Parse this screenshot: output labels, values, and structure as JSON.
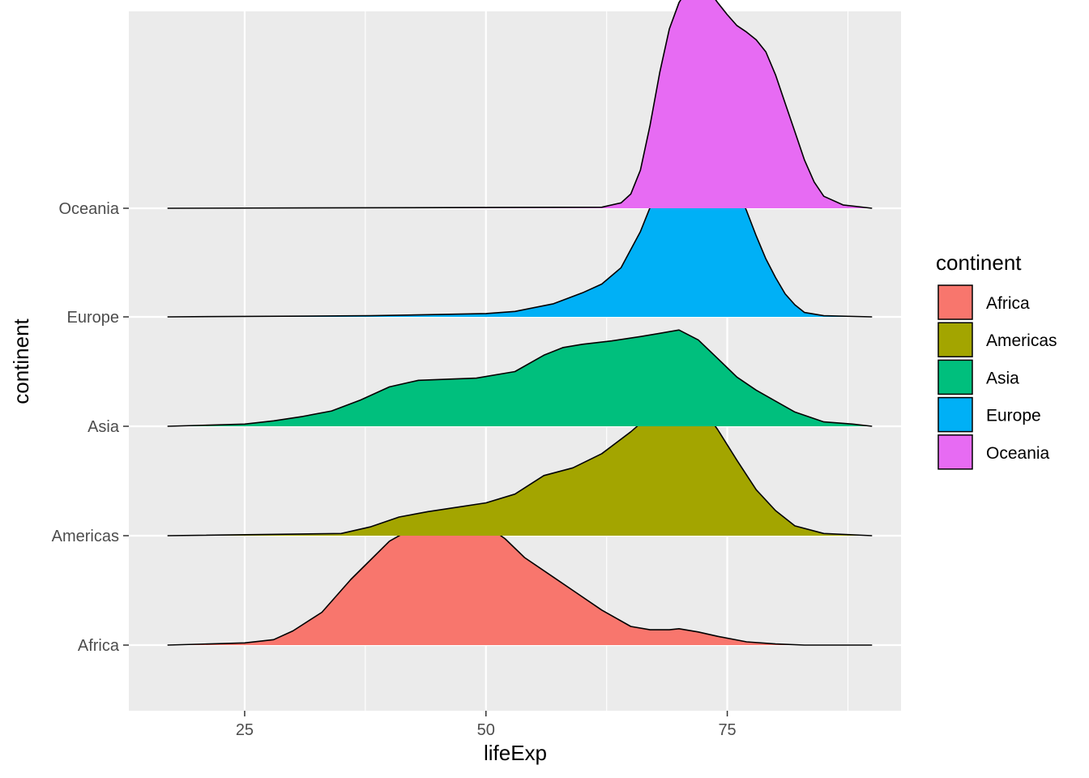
{
  "chart_data": {
    "type": "ridgeline",
    "xlabel": "lifeExp",
    "ylabel": "continent",
    "xlim": [
      13,
      93
    ],
    "x_ticks": [
      25,
      50,
      75
    ],
    "x_minor_ticks": [
      37.5,
      62.5,
      87.5
    ],
    "density_x_range": [
      17,
      90
    ],
    "categories": [
      "Africa",
      "Americas",
      "Asia",
      "Europe",
      "Oceania"
    ],
    "grid": true,
    "legend": {
      "title": "continent",
      "position": "right",
      "items": [
        {
          "label": "Africa",
          "color": "#F8766D"
        },
        {
          "label": "Americas",
          "color": "#A3A500"
        },
        {
          "label": "Asia",
          "color": "#00BF7D"
        },
        {
          "label": "Europe",
          "color": "#00B0F6"
        },
        {
          "label": "Oceania",
          "color": "#E76BF3"
        }
      ]
    },
    "series": [
      {
        "name": "Africa",
        "color": "#F8766D",
        "points": [
          [
            17,
            0
          ],
          [
            25,
            0.02
          ],
          [
            28,
            0.05
          ],
          [
            30,
            0.13
          ],
          [
            33,
            0.3
          ],
          [
            36,
            0.6
          ],
          [
            40,
            0.95
          ],
          [
            42,
            1.05
          ],
          [
            45,
            1.2
          ],
          [
            48,
            1.18
          ],
          [
            50,
            1.1
          ],
          [
            52,
            0.97
          ],
          [
            54,
            0.8
          ],
          [
            57,
            0.62
          ],
          [
            59,
            0.5
          ],
          [
            62,
            0.32
          ],
          [
            65,
            0.17
          ],
          [
            67,
            0.14
          ],
          [
            69,
            0.14
          ],
          [
            70,
            0.15
          ],
          [
            72,
            0.12
          ],
          [
            74,
            0.08
          ],
          [
            77,
            0.03
          ],
          [
            80,
            0.01
          ],
          [
            83,
            0
          ],
          [
            90,
            0
          ]
        ]
      },
      {
        "name": "Americas",
        "color": "#A3A500",
        "points": [
          [
            17,
            0
          ],
          [
            35,
            0.02
          ],
          [
            38,
            0.08
          ],
          [
            41,
            0.17
          ],
          [
            44,
            0.22
          ],
          [
            47,
            0.26
          ],
          [
            50,
            0.3
          ],
          [
            53,
            0.38
          ],
          [
            56,
            0.55
          ],
          [
            59,
            0.62
          ],
          [
            62,
            0.75
          ],
          [
            65,
            0.95
          ],
          [
            68,
            1.18
          ],
          [
            70,
            1.29
          ],
          [
            72,
            1.22
          ],
          [
            74,
            0.97
          ],
          [
            76,
            0.69
          ],
          [
            78,
            0.42
          ],
          [
            80,
            0.23
          ],
          [
            82,
            0.09
          ],
          [
            85,
            0.02
          ],
          [
            90,
            0
          ]
        ]
      },
      {
        "name": "Asia",
        "color": "#00BF7D",
        "points": [
          [
            17,
            0
          ],
          [
            25,
            0.02
          ],
          [
            28,
            0.05
          ],
          [
            31,
            0.09
          ],
          [
            34,
            0.14
          ],
          [
            37,
            0.24
          ],
          [
            40,
            0.36
          ],
          [
            43,
            0.42
          ],
          [
            46,
            0.43
          ],
          [
            49,
            0.44
          ],
          [
            53,
            0.5
          ],
          [
            56,
            0.65
          ],
          [
            58,
            0.72
          ],
          [
            60,
            0.75
          ],
          [
            63,
            0.78
          ],
          [
            66,
            0.82
          ],
          [
            68,
            0.85
          ],
          [
            70,
            0.88
          ],
          [
            72,
            0.79
          ],
          [
            74,
            0.62
          ],
          [
            76,
            0.45
          ],
          [
            78,
            0.33
          ],
          [
            80,
            0.23
          ],
          [
            82,
            0.13
          ],
          [
            85,
            0.04
          ],
          [
            88,
            0.02
          ],
          [
            90,
            0
          ]
        ]
      },
      {
        "name": "Europe",
        "color": "#00B0F6",
        "points": [
          [
            17,
            0
          ],
          [
            38,
            0.01
          ],
          [
            44,
            0.02
          ],
          [
            50,
            0.03
          ],
          [
            53,
            0.05
          ],
          [
            57,
            0.12
          ],
          [
            60,
            0.22
          ],
          [
            62,
            0.3
          ],
          [
            64,
            0.45
          ],
          [
            66,
            0.78
          ],
          [
            68,
            1.22
          ],
          [
            70,
            1.58
          ],
          [
            71,
            1.7
          ],
          [
            72,
            1.73
          ],
          [
            73,
            1.66
          ],
          [
            74,
            1.55
          ],
          [
            75,
            1.38
          ],
          [
            76,
            1.18
          ],
          [
            77,
            0.97
          ],
          [
            78,
            0.74
          ],
          [
            79,
            0.53
          ],
          [
            80,
            0.36
          ],
          [
            81,
            0.21
          ],
          [
            82,
            0.11
          ],
          [
            83,
            0.04
          ],
          [
            85,
            0.01
          ],
          [
            90,
            0
          ]
        ]
      },
      {
        "name": "Oceania",
        "color": "#E76BF3",
        "points": [
          [
            17,
            0
          ],
          [
            62,
            0.01
          ],
          [
            64,
            0.05
          ],
          [
            65,
            0.13
          ],
          [
            66,
            0.35
          ],
          [
            67,
            0.76
          ],
          [
            68,
            1.24
          ],
          [
            69,
            1.64
          ],
          [
            70,
            1.88
          ],
          [
            71,
            2.02
          ],
          [
            72,
            2.05
          ],
          [
            73,
            2.0
          ],
          [
            74,
            1.88
          ],
          [
            75,
            1.77
          ],
          [
            76,
            1.67
          ],
          [
            77,
            1.61
          ],
          [
            78,
            1.54
          ],
          [
            79,
            1.43
          ],
          [
            80,
            1.22
          ],
          [
            81,
            0.96
          ],
          [
            82,
            0.7
          ],
          [
            83,
            0.44
          ],
          [
            84,
            0.24
          ],
          [
            85,
            0.11
          ],
          [
            87,
            0.03
          ],
          [
            90,
            0
          ]
        ]
      }
    ]
  }
}
